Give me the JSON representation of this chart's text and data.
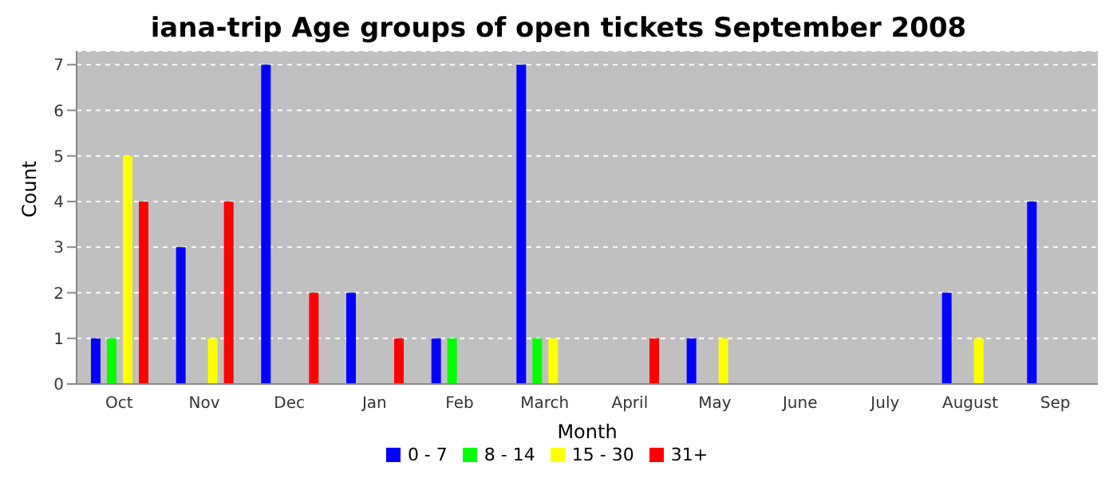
{
  "chart_data": {
    "type": "bar",
    "title": "iana-trip Age groups of open tickets September 2008",
    "xlabel": "Month",
    "ylabel": "Count",
    "categories": [
      "Oct",
      "Nov",
      "Dec",
      "Jan",
      "Feb",
      "March",
      "April",
      "May",
      "June",
      "July",
      "August",
      "Sep"
    ],
    "series": [
      {
        "name": "0 - 7",
        "color": "#0000ff",
        "values": [
          1,
          3,
          7,
          2,
          1,
          7,
          0,
          1,
          0,
          0,
          2,
          4
        ]
      },
      {
        "name": "8 - 14",
        "color": "#00ff00",
        "values": [
          1,
          0,
          0,
          0,
          1,
          1,
          0,
          0,
          0,
          0,
          0,
          0
        ]
      },
      {
        "name": "15 - 30",
        "color": "#ffff00",
        "values": [
          5,
          1,
          0,
          0,
          0,
          1,
          0,
          1,
          0,
          0,
          1,
          0
        ]
      },
      {
        "name": "31+",
        "color": "#ff0000",
        "values": [
          4,
          4,
          2,
          1,
          0,
          0,
          1,
          0,
          0,
          0,
          0,
          0
        ]
      }
    ],
    "ylim": [
      0,
      7.3
    ],
    "yticks": [
      0,
      1,
      2,
      3,
      4,
      5,
      6,
      7
    ],
    "grid": "y",
    "legend": "bottom"
  }
}
